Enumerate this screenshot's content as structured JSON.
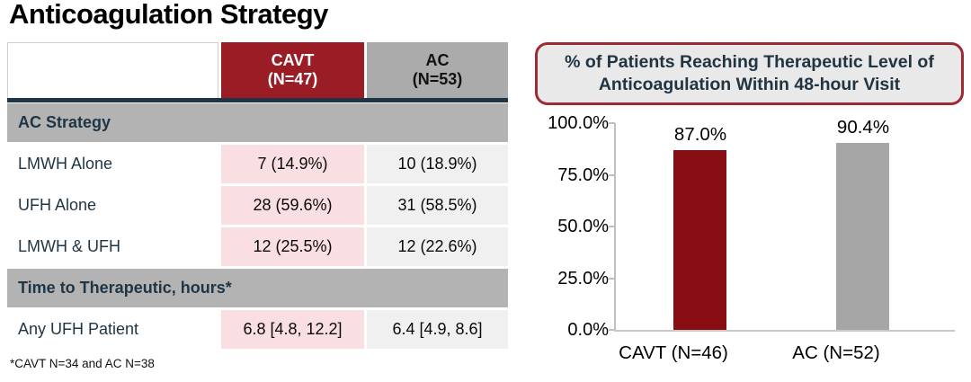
{
  "slide": {
    "title": "Anticoagulation Strategy"
  },
  "table": {
    "col_headers": [
      {
        "line1": "CAVT",
        "line2": "(N=47)"
      },
      {
        "line1": "AC",
        "line2": "(N=53)"
      }
    ],
    "rows": [
      {
        "type": "section",
        "label": "AC Strategy"
      },
      {
        "type": "data",
        "label": "LMWH Alone",
        "cavt": "7 (14.9%)",
        "ac": "10 (18.9%)"
      },
      {
        "type": "data",
        "label": "UFH Alone",
        "cavt": "28 (59.6%)",
        "ac": "31 (58.5%)"
      },
      {
        "type": "data",
        "label": "LMWH & UFH",
        "cavt": "12 (25.5%)",
        "ac": "12 (22.6%)"
      },
      {
        "type": "section",
        "label": "Time to Therapeutic, hours*"
      },
      {
        "type": "data",
        "label": "Any UFH Patient",
        "cavt": "6.8 [4.8, 12.2]",
        "ac": "6.4 [4.9, 8.6]"
      }
    ],
    "footnote": "*CAVT N=34 and AC N=38"
  },
  "chart_data": {
    "type": "bar",
    "title": "% of Patients Reaching Therapeutic Level of Anticoagulation Within 48-hour Visit",
    "categories": [
      "CAVT (N=46)",
      "AC (N=52)"
    ],
    "values": [
      87.0,
      90.4
    ],
    "value_labels": [
      "87.0%",
      "90.4%"
    ],
    "bar_colors": [
      "#880e14",
      "#a6a6a6"
    ],
    "xlabel": "",
    "ylabel": "",
    "ylim": [
      0,
      100
    ],
    "yticks": [
      "100.0%",
      "75.0%",
      "50.0%",
      "25.0%",
      "0.0%"
    ],
    "grid": false,
    "legend": false
  },
  "colors": {
    "table_header_red": "#9a1c24",
    "table_header_gray": "#ababab",
    "section_gray": "#b3b3b3",
    "cavt_cell_pink": "#f9dfe2",
    "ac_cell_gray": "#f0f0f0",
    "divider_navy": "#1f3545",
    "chart_title_border": "#9e2b33",
    "chart_title_bg": "#e9e9e9",
    "bar_red": "#880e14",
    "bar_gray": "#a6a6a6"
  }
}
